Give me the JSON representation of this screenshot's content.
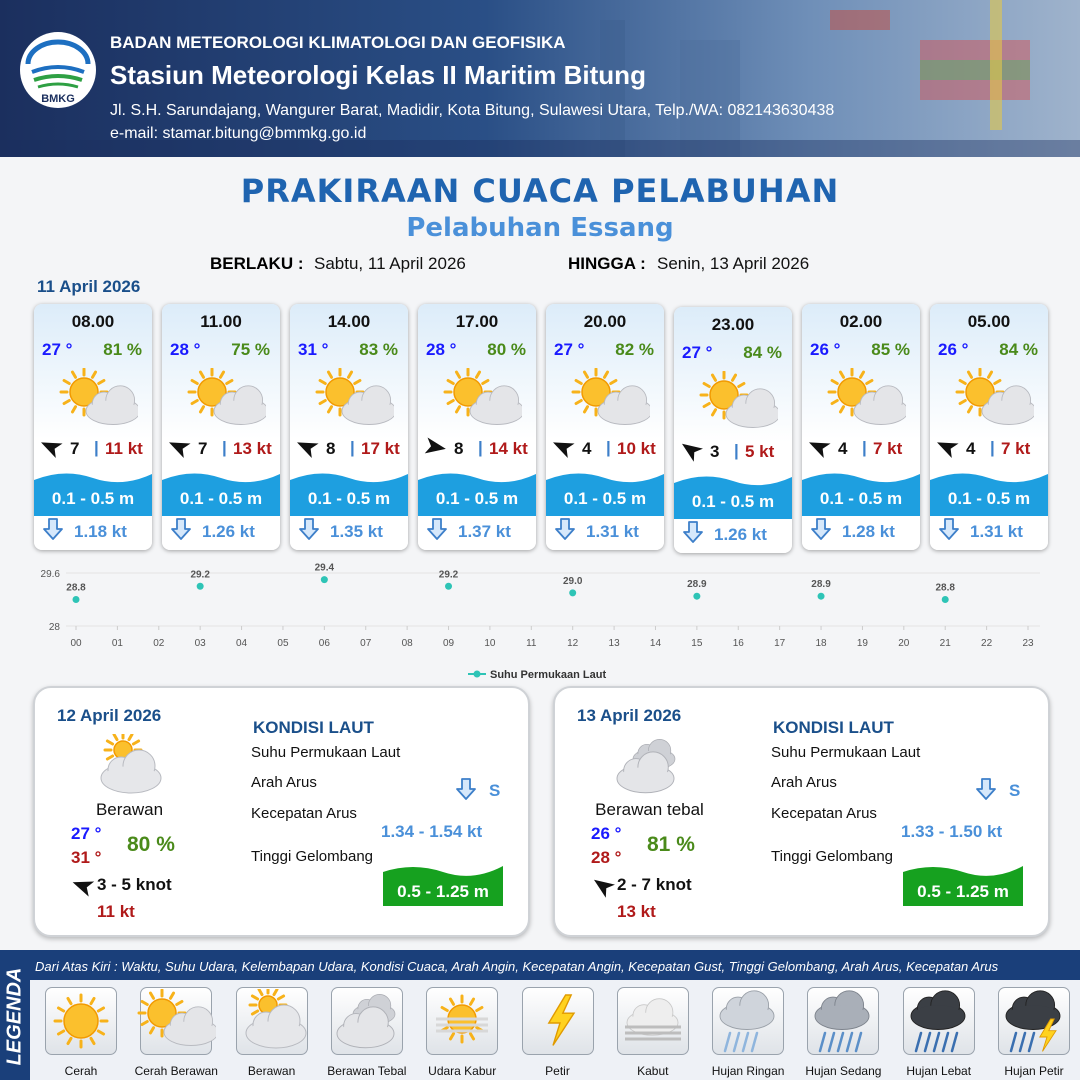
{
  "header": {
    "logo": "BMKG",
    "agency": "BADAN METEOROLOGI KLIMATOLOGI DAN GEOFISIKA",
    "station": "Stasiun Meteorologi Kelas II Maritim Bitung",
    "address": "Jl. S.H. Sarundajang, Wangurer Barat, Madidir, Kota Bitung, Sulawesi Utara, Telp./WA: 082143630438",
    "email": "e-mail: stamar.bitung@bmmkg.go.id"
  },
  "title": "PRAKIRAAN CUACA PELABUHAN",
  "subtitle": "Pelabuhan Essang",
  "validity": {
    "from_label": "BERLAKU :",
    "from": "Sabtu, 11 April 2026",
    "to_label": "HINGGA :",
    "to": "Senin, 13 April 2026"
  },
  "day1": {
    "date": "11 April 2026",
    "separator": "|",
    "slots": [
      {
        "time": "08.00",
        "temperature": "27 °",
        "humidity": "81 %",
        "wind": "7",
        "gust": "11 kt",
        "wave": "0.1 - 0.5 m",
        "current": "1.18 kt"
      },
      {
        "time": "11.00",
        "temperature": "28 °",
        "humidity": "75 %",
        "wind": "7",
        "gust": "13 kt",
        "wave": "0.1 - 0.5 m",
        "current": "1.26 kt"
      },
      {
        "time": "14.00",
        "temperature": "31 °",
        "humidity": "83 %",
        "wind": "8",
        "gust": "17 kt",
        "wave": "0.1 - 0.5 m",
        "current": "1.35 kt"
      },
      {
        "time": "17.00",
        "temperature": "28 °",
        "humidity": "80 %",
        "wind": "8",
        "gust": "14 kt",
        "wave": "0.1 - 0.5 m",
        "current": "1.37 kt"
      },
      {
        "time": "20.00",
        "temperature": "27 °",
        "humidity": "82 %",
        "wind": "4",
        "gust": "10 kt",
        "wave": "0.1 - 0.5 m",
        "current": "1.31 kt"
      },
      {
        "time": "23.00",
        "temperature": "27 °",
        "humidity": "84 %",
        "wind": "3",
        "gust": "5 kt",
        "wave": "0.1 - 0.5 m",
        "current": "1.26 kt"
      },
      {
        "time": "02.00",
        "temperature": "26 °",
        "humidity": "85 %",
        "wind": "4",
        "gust": "7 kt",
        "wave": "0.1 - 0.5 m",
        "current": "1.28 kt"
      },
      {
        "time": "05.00",
        "temperature": "26 °",
        "humidity": "84 %",
        "wind": "4",
        "gust": "7 kt",
        "wave": "0.1 - 0.5 m",
        "current": "1.31 kt"
      }
    ]
  },
  "chart_data": {
    "type": "scatter",
    "x": [
      0,
      3,
      6,
      9,
      12,
      15,
      18,
      21
    ],
    "series": [
      {
        "name": "Suhu Permukaan Laut",
        "color": "#2ec4b6",
        "values": [
          28.8,
          29.2,
          29.4,
          29.2,
          29.0,
          28.9,
          28.9,
          28.8
        ],
        "value_labels": [
          "28.8",
          "29.2",
          "29.4",
          "29.2",
          "29.0",
          "28.9",
          "28.9",
          "28.8"
        ]
      }
    ],
    "xlim": [
      0,
      23
    ],
    "xticks": [
      {
        "value": 0,
        "label": "00"
      },
      {
        "value": 1,
        "label": "01"
      },
      {
        "value": 2,
        "label": "02"
      },
      {
        "value": 3,
        "label": "03"
      },
      {
        "value": 4,
        "label": "04"
      },
      {
        "value": 5,
        "label": "05"
      },
      {
        "value": 6,
        "label": "06"
      },
      {
        "value": 7,
        "label": "07"
      },
      {
        "value": 8,
        "label": "08"
      },
      {
        "value": 9,
        "label": "09"
      },
      10,
      11,
      12,
      13,
      14,
      15,
      16,
      17,
      18,
      19,
      20,
      21,
      22,
      23
    ],
    "ylim": [
      28,
      29.6
    ],
    "yticks": [
      28,
      29.6
    ],
    "grid": true,
    "legend": "bottom"
  },
  "day2": {
    "date": "12 April 2026",
    "condition": "Berawan",
    "temp_min": "27 °",
    "temp_max": "31 °",
    "humidity": "80 %",
    "wind": "3  - 5 knot",
    "gust": "11 kt",
    "sea": {
      "title": "KONDISI LAUT",
      "sst_label": "Suhu Permukaan Laut",
      "direction_label": "Arah Arus",
      "speed_label": "Kecepatan Arus",
      "wave_label": "Tinggi Gelombang",
      "direction": "S",
      "speed": "1.34 - 1.54 kt",
      "wave": "0.5 - 1.25 m"
    }
  },
  "day3": {
    "date": "13 April 2026",
    "condition": "Berawan tebal",
    "temp_min": "26 °",
    "temp_max": "28 °",
    "humidity": "81 %",
    "wind": "2  - 7 knot",
    "gust": "13 kt",
    "sea": {
      "title": "KONDISI LAUT",
      "sst_label": "Suhu Permukaan Laut",
      "direction_label": "Arah Arus",
      "speed_label": "Kecepatan Arus",
      "wave_label": "Tinggi Gelombang",
      "direction": "S",
      "speed": "1.33 - 1.50 kt",
      "wave": "0.5 - 1.25 m"
    }
  },
  "legend": {
    "title": "LEGENDA",
    "description": "Dari Atas Kiri : Waktu, Suhu Udara, Kelembapan Udara, Kondisi Cuaca, Arah Angin, Kecepatan Angin, Kecepatan Gust, Tinggi Gelombang, Arah Arus, Kecepatan Arus",
    "items": [
      "Cerah",
      "Cerah Berawan",
      "Berawan",
      "Berawan Tebal",
      "Udara Kabur",
      "Petir",
      "Kabut",
      "Hujan Ringan",
      "Hujan Sedang",
      "Hujan Lebat",
      "Hujan Petir"
    ]
  }
}
